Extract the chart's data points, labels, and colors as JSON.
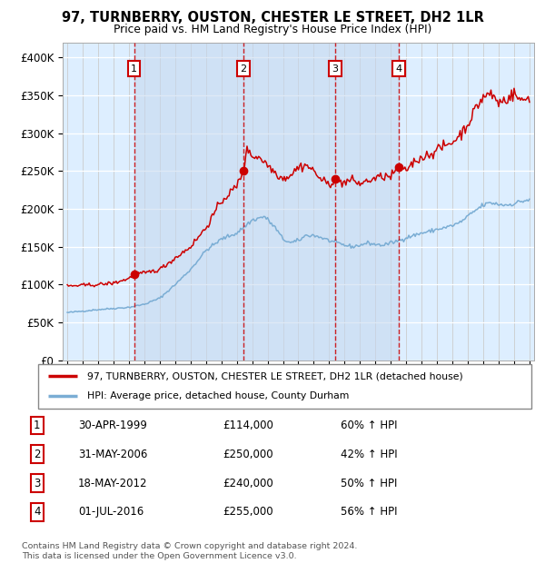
{
  "title": "97, TURNBERRY, OUSTON, CHESTER LE STREET, DH2 1LR",
  "subtitle": "Price paid vs. HM Land Registry's House Price Index (HPI)",
  "sale_dates_decimal": [
    1999.33,
    2006.42,
    2012.38,
    2016.5
  ],
  "sale_prices": [
    114000,
    250000,
    240000,
    255000
  ],
  "sale_labels": [
    "1",
    "2",
    "3",
    "4"
  ],
  "sale_info": [
    [
      "1",
      "30-APR-1999",
      "£114,000",
      "60% ↑ HPI"
    ],
    [
      "2",
      "31-MAY-2006",
      "£250,000",
      "42% ↑ HPI"
    ],
    [
      "3",
      "18-MAY-2012",
      "£240,000",
      "50% ↑ HPI"
    ],
    [
      "4",
      "01-JUL-2016",
      "£255,000",
      "56% ↑ HPI"
    ]
  ],
  "red_line_color": "#cc0000",
  "blue_line_color": "#7aadd4",
  "sale_marker_color": "#cc0000",
  "chart_bg_color": "#ddeeff",
  "outer_bg_color": "#f5f5f5",
  "grid_color": "#cccccc",
  "white_grid_color": "#ffffff",
  "vline_color": "#cc0000",
  "label_box_color": "#cc0000",
  "ylim": [
    0,
    420000
  ],
  "yticks": [
    0,
    50000,
    100000,
    150000,
    200000,
    250000,
    300000,
    350000,
    400000
  ],
  "ytick_labels": [
    "£0",
    "£50K",
    "£100K",
    "£150K",
    "£200K",
    "£250K",
    "£300K",
    "£350K",
    "£400K"
  ],
  "footer": "Contains HM Land Registry data © Crown copyright and database right 2024.\nThis data is licensed under the Open Government Licence v3.0.",
  "legend_entry1": "97, TURNBERRY, OUSTON, CHESTER LE STREET, DH2 1LR (detached house)",
  "legend_entry2": "HPI: Average price, detached house, County Durham",
  "xlim_min": 1994.7,
  "xlim_max": 2025.3
}
